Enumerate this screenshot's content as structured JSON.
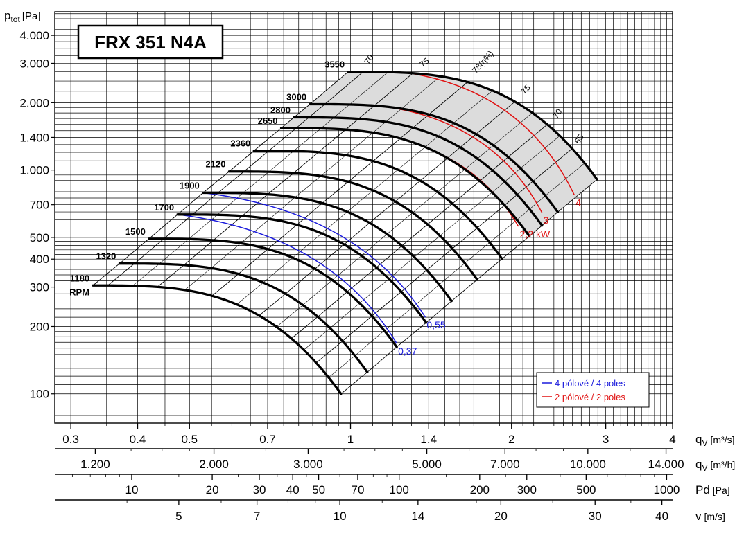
{
  "chart_data": {
    "type": "line",
    "title": "FRX 351 N4A",
    "y_axis": {
      "label_main": "p",
      "label_sub": "tot",
      "label_unit": "[Pa]",
      "scale": "log",
      "range": [
        74,
        5100
      ],
      "ticks": [
        {
          "value": 4000,
          "label": "4.000"
        },
        {
          "value": 3000,
          "label": "3.000"
        },
        {
          "value": 2000,
          "label": "2.000"
        },
        {
          "value": 1400,
          "label": "1.400"
        },
        {
          "value": 1000,
          "label": "1.000"
        },
        {
          "value": 700,
          "label": "700"
        },
        {
          "value": 500,
          "label": "500"
        },
        {
          "value": 400,
          "label": "400"
        },
        {
          "value": 300,
          "label": "300"
        },
        {
          "value": 200,
          "label": "200"
        },
        {
          "value": 100,
          "label": "100"
        }
      ]
    },
    "x_axis": {
      "scale": "log",
      "range": [
        0.28,
        4.0
      ],
      "unit_label": "[m³/s]",
      "unit_main": "q",
      "unit_sub": "V",
      "ticks": [
        {
          "value": 0.3,
          "label": "0.3"
        },
        {
          "value": 0.4,
          "label": "0.4"
        },
        {
          "value": 0.5,
          "label": "0.5"
        },
        {
          "value": 0.7,
          "label": "0.7"
        },
        {
          "value": 1.0,
          "label": "1"
        },
        {
          "value": 1.4,
          "label": "1.4"
        },
        {
          "value": 2.0,
          "label": "2"
        },
        {
          "value": 3.0,
          "label": "3"
        },
        {
          "value": 4.0,
          "label": "4"
        }
      ]
    },
    "secondary_axes": [
      {
        "name": "flow-m3h",
        "unit_main": "q",
        "unit_sub": "V",
        "unit_label": "[m³/h]",
        "factor": 3600,
        "ticks": [
          {
            "value": 1200,
            "label": "1.200"
          },
          {
            "value": 2000,
            "label": "2.000"
          },
          {
            "value": 3000,
            "label": "3.000"
          },
          {
            "value": 5000,
            "label": "5.000"
          },
          {
            "value": 7000,
            "label": "7.000"
          },
          {
            "value": 10000,
            "label": "10.000"
          },
          {
            "value": 14000,
            "label": "14.000"
          }
        ],
        "minor": [
          1000,
          1400,
          1600,
          1800,
          2500,
          3500,
          4000,
          4500,
          6000,
          8000,
          9000,
          12000
        ]
      },
      {
        "name": "dynamic-pressure",
        "unit_main": "Pd",
        "unit_sub": "",
        "unit_label": "[Pa]",
        "power": 2,
        "ticks": [
          {
            "value": 10,
            "label": "10"
          },
          {
            "value": 20,
            "label": "20"
          },
          {
            "value": 30,
            "label": "30"
          },
          {
            "value": 40,
            "label": "40"
          },
          {
            "value": 50,
            "label": "50"
          },
          {
            "value": 70,
            "label": "70"
          },
          {
            "value": 100,
            "label": "100"
          },
          {
            "value": 200,
            "label": "200"
          },
          {
            "value": 300,
            "label": "300"
          },
          {
            "value": 500,
            "label": "500"
          },
          {
            "value": 1000,
            "label": "1000"
          }
        ],
        "minor": [
          6,
          7,
          8,
          9,
          15,
          25,
          35,
          45,
          60,
          80,
          90,
          150,
          250,
          400,
          600,
          700,
          800,
          900
        ]
      },
      {
        "name": "velocity",
        "unit_main": "v",
        "unit_sub": "",
        "unit_label": "[m/s]",
        "ticks": [
          {
            "value": 5,
            "label": "5"
          },
          {
            "value": 7,
            "label": "7"
          },
          {
            "value": 10,
            "label": "10"
          },
          {
            "value": 14,
            "label": "14"
          },
          {
            "value": 20,
            "label": "20"
          },
          {
            "value": 30,
            "label": "30"
          },
          {
            "value": 40,
            "label": "40"
          }
        ],
        "minor": [
          4,
          6,
          8,
          9,
          12,
          16,
          18,
          25,
          35
        ]
      }
    ],
    "rpm_curves": [
      {
        "rpm": "1180",
        "x0": 0.33,
        "p0": 305,
        "x_end": 0.96,
        "p_end": 100
      },
      {
        "rpm": "1320",
        "x0": 0.37,
        "p0": 382,
        "x_end": 1.075,
        "p_end": 125
      },
      {
        "rpm": "1500",
        "x0": 0.42,
        "p0": 493,
        "x_end": 1.22,
        "p_end": 162
      },
      {
        "rpm": "1700",
        "x0": 0.475,
        "p0": 633,
        "x_end": 1.385,
        "p_end": 208
      },
      {
        "rpm": "1900",
        "x0": 0.53,
        "p0": 791,
        "x_end": 1.545,
        "p_end": 260
      },
      {
        "rpm": "2120",
        "x0": 0.593,
        "p0": 985,
        "x_end": 1.725,
        "p_end": 324
      },
      {
        "rpm": "2360",
        "x0": 0.66,
        "p0": 1220,
        "x_end": 1.92,
        "p_end": 401
      },
      {
        "rpm": "2650",
        "x0": 0.742,
        "p0": 1540,
        "x_end": 2.16,
        "p_end": 506
      },
      {
        "rpm": "2800",
        "x0": 0.784,
        "p0": 1720,
        "x_end": 2.28,
        "p_end": 565
      },
      {
        "rpm": "3000",
        "x0": 0.84,
        "p0": 1970,
        "x_end": 2.44,
        "p_end": 649
      },
      {
        "rpm": "3550",
        "x0": 0.99,
        "p0": 2750,
        "x_end": 2.89,
        "p_end": 908
      }
    ],
    "rpm_unit_label": "RPM",
    "efficiency_lines": [
      {
        "label": "70",
        "label_rpm": "3550"
      },
      {
        "label": "75",
        "label_rpm": "3550"
      },
      {
        "label": "78(η%)",
        "label_rpm": "3550"
      },
      {
        "label": "75",
        "label_rpm": "3550"
      },
      {
        "label": "70",
        "label_rpm": "3550"
      },
      {
        "label": "65",
        "label_rpm": "3550"
      }
    ],
    "power_lines": [
      {
        "label": "0,37",
        "color": "#1a1adc",
        "group": "4-pole",
        "q_end": 1.22,
        "p_end": 168
      },
      {
        "label": "0,55",
        "color": "#1a1adc",
        "group": "4-pole",
        "q_end": 1.38,
        "p_end": 220
      },
      {
        "label": "2,2 kW",
        "color": "#e01010",
        "group": "2-pole",
        "q_end": 2.06,
        "p_end": 560
      },
      {
        "label": "3",
        "color": "#e01010",
        "group": "2-pole",
        "q_end": 2.28,
        "p_end": 645
      },
      {
        "label": "4",
        "color": "#e01010",
        "group": "2-pole",
        "q_end": 2.62,
        "p_end": 775
      }
    ],
    "legend": {
      "placement": "bottom-right",
      "entries": [
        {
          "label": "4 pólové / 4 poles",
          "color": "#1a1adc"
        },
        {
          "label": "2 pólové / 2 poles",
          "color": "#e01010"
        }
      ]
    },
    "colors": {
      "curves": "#000000",
      "four_pole": "#1a1adc",
      "two_pole": "#e01010",
      "region": "#dcdcdc",
      "grid": "#000000"
    }
  }
}
